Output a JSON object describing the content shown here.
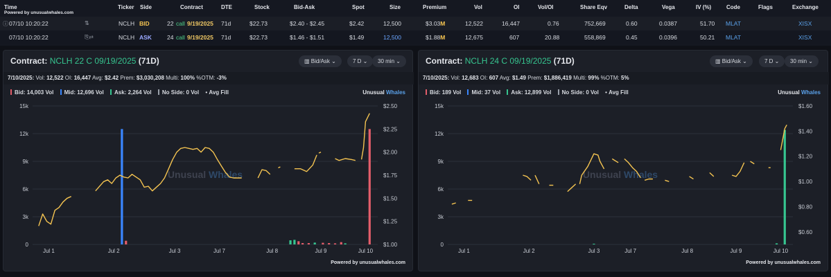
{
  "table": {
    "powered_by": "Powered by unusualwhales.com",
    "headers": [
      "Time",
      "Ticker",
      "Side",
      "Contract",
      "DTE",
      "Stock",
      "Bid-Ask",
      "Spot",
      "Size",
      "Premium",
      "Vol",
      "OI",
      "Vol/OI",
      "Share Eqv",
      "Delta",
      "Vega",
      "IV (%)",
      "Code",
      "Flags",
      "Exchange"
    ],
    "rows": [
      {
        "time": "07/10 10:20:22",
        "ticker": "NCLH",
        "side": "BID",
        "strike": "22",
        "type": "call",
        "expiry": "9/19/2025",
        "dte": "71d",
        "stock": "$22.73",
        "bid_ask": "$2.40 - $2.45",
        "spot": "$2.42",
        "size": "12,500",
        "premium": "$3.03",
        "premium_unit": "M",
        "vol": "12,522",
        "oi": "16,447",
        "vol_oi": "0.76",
        "share_eqv": "752,669",
        "delta": "0.60",
        "vega": "0.0387",
        "iv": "51.70",
        "code": "MLAT",
        "flags": "",
        "exchange": "XISX"
      },
      {
        "time": "07/10 10:20:22",
        "ticker": "NCLH",
        "side": "ASK",
        "strike": "24",
        "type": "call",
        "expiry": "9/19/2025",
        "dte": "71d",
        "stock": "$22.73",
        "bid_ask": "$1.46 - $1.51",
        "spot": "$1.49",
        "size": "12,500",
        "premium": "$1.88",
        "premium_unit": "M",
        "vol": "12,675",
        "oi": "607",
        "vol_oi": "20.88",
        "share_eqv": "558,869",
        "delta": "0.45",
        "vega": "0.0396",
        "iv": "50.21",
        "code": "MLAT",
        "flags": "",
        "exchange": "XISX"
      }
    ],
    "colors": {
      "bid": "#f5c451",
      "ask": "#9aa8ff",
      "call": "#4fd18b",
      "code": "#5aa0e8"
    }
  },
  "panels": [
    {
      "title_prefix": "Contract:",
      "contract": "NCLH 22 C 09/19/2025",
      "dte": "(71D)",
      "controls": {
        "mode": "Bid/Ask",
        "range": "7 D",
        "interval": "30 min"
      },
      "stats": {
        "date": "7/10/2025:",
        "vol_label": "Vol:",
        "vol": "12,522",
        "oi_label": "OI:",
        "oi": "16,447",
        "avg_label": "Avg:",
        "avg": "$2.42",
        "prem_label": "Prem:",
        "prem": "$3,030,208",
        "multi_label": "Multi:",
        "multi": "100%",
        "otm_label": "%OTM:",
        "otm": "-3%"
      },
      "legend": {
        "bid": "Bid: 14,003 Vol",
        "mid": "Mid: 12,696 Vol",
        "ask": "Ask: 2,264 Vol",
        "noside": "No Side: 0 Vol",
        "avgfill": "Avg Fill"
      },
      "brand": {
        "a": "Unusual",
        "b": "Whales"
      },
      "powered": "Powered by unusualwhales.com"
    },
    {
      "title_prefix": "Contract:",
      "contract": "NCLH 24 C 09/19/2025",
      "dte": "(71D)",
      "controls": {
        "mode": "Bid/Ask",
        "range": "7 D",
        "interval": "30 min"
      },
      "stats": {
        "date": "7/10/2025:",
        "vol_label": "Vol:",
        "vol": "12,683",
        "oi_label": "OI:",
        "oi": "607",
        "avg_label": "Avg:",
        "avg": "$1.49",
        "prem_label": "Prem:",
        "prem": "$1,886,419",
        "multi_label": "Multi:",
        "multi": "99%",
        "otm_label": "%OTM:",
        "otm": "5%"
      },
      "legend": {
        "bid": "Bid: 189 Vol",
        "mid": "Mid: 37 Vol",
        "ask": "Ask: 12,899 Vol",
        "noside": "No Side: 0 Vol",
        "avgfill": "Avg Fill"
      },
      "brand": {
        "a": "Unusual",
        "b": "Whales"
      },
      "powered": "Powered by unusualwhales.com"
    }
  ],
  "chart_data": [
    {
      "type": "bar",
      "xlabel": "",
      "ylabel": "",
      "x_range": [
        0,
        8.5
      ],
      "x_ticks": [
        {
          "x": 0.4,
          "label": "Jul 1"
        },
        {
          "x": 2.0,
          "label": "Jul 2"
        },
        {
          "x": 3.5,
          "label": "Jul 3"
        },
        {
          "x": 4.6,
          "label": "Jul 7"
        },
        {
          "x": 5.9,
          "label": "Jul 8"
        },
        {
          "x": 7.1,
          "label": "Jul 9"
        },
        {
          "x": 8.2,
          "label": "Jul 10"
        }
      ],
      "y_left": {
        "min": 0,
        "max": 15000,
        "ticks": [
          0,
          3000,
          6000,
          9000,
          12000,
          15000
        ],
        "labels": [
          "0",
          "3k",
          "6k",
          "9k",
          "12k",
          "15k"
        ]
      },
      "y_right": {
        "min": 1.0,
        "max": 2.5,
        "ticks": [
          1.0,
          1.25,
          1.5,
          1.75,
          2.0,
          2.25,
          2.5
        ],
        "labels": [
          "$1.00",
          "$1.25",
          "$1.50",
          "$1.75",
          "$2.00",
          "$2.25",
          "$2.50"
        ]
      },
      "grid": true,
      "volume_bars": [
        {
          "x": 2.2,
          "v": 12500,
          "side": "mid"
        },
        {
          "x": 2.3,
          "v": 400,
          "side": "bid"
        },
        {
          "x": 6.35,
          "v": 450,
          "side": "ask"
        },
        {
          "x": 6.45,
          "v": 500,
          "side": "ask"
        },
        {
          "x": 6.55,
          "v": 350,
          "side": "bid"
        },
        {
          "x": 6.65,
          "v": 150,
          "side": "bid"
        },
        {
          "x": 6.8,
          "v": 150,
          "side": "bid"
        },
        {
          "x": 6.95,
          "v": 200,
          "side": "ask"
        },
        {
          "x": 7.15,
          "v": 180,
          "side": "bid"
        },
        {
          "x": 7.3,
          "v": 150,
          "side": "bid"
        },
        {
          "x": 7.45,
          "v": 120,
          "side": "bid"
        },
        {
          "x": 7.6,
          "v": 250,
          "side": "bid"
        },
        {
          "x": 7.7,
          "v": 120,
          "side": "ask"
        },
        {
          "x": 8.3,
          "v": 12500,
          "side": "bid"
        }
      ],
      "avg_fill_segments": [
        [
          [
            0.15,
            1.2
          ],
          [
            0.25,
            1.33
          ],
          [
            0.35,
            1.25
          ],
          [
            0.45,
            1.22
          ],
          [
            0.55,
            1.37
          ],
          [
            0.65,
            1.4
          ],
          [
            0.75,
            1.46
          ],
          [
            0.85,
            1.5
          ],
          [
            0.95,
            1.52
          ]
        ],
        [
          [
            1.55,
            1.58
          ],
          [
            1.75,
            1.68
          ],
          [
            1.85,
            1.7
          ],
          [
            1.95,
            1.66
          ],
          [
            2.05,
            1.72
          ],
          [
            2.15,
            1.75
          ],
          [
            2.25,
            1.73
          ],
          [
            2.35,
            1.72
          ],
          [
            2.45,
            1.76
          ],
          [
            2.55,
            1.73
          ],
          [
            2.65,
            1.7
          ],
          [
            2.75,
            1.62
          ],
          [
            2.85,
            1.63
          ],
          [
            2.95,
            1.58
          ],
          [
            3.05,
            1.62
          ],
          [
            3.15,
            1.66
          ],
          [
            3.25,
            1.72
          ],
          [
            3.35,
            1.82
          ],
          [
            3.45,
            1.92
          ],
          [
            3.55,
            2.0
          ],
          [
            3.65,
            2.04
          ],
          [
            3.75,
            2.05
          ],
          [
            3.85,
            2.04
          ],
          [
            3.95,
            2.03
          ],
          [
            4.05,
            2.04
          ],
          [
            4.15,
            2.0
          ],
          [
            4.25,
            2.05
          ],
          [
            4.35,
            2.04
          ],
          [
            4.45,
            2.0
          ],
          [
            4.55,
            1.92
          ],
          [
            4.65,
            1.85
          ],
          [
            4.75,
            1.78
          ],
          [
            4.85,
            1.73
          ],
          [
            4.95,
            1.72
          ],
          [
            5.05,
            1.72
          ],
          [
            5.15,
            1.72
          ]
        ],
        [
          [
            5.55,
            1.72
          ],
          [
            5.65,
            1.81
          ],
          [
            5.75,
            1.8
          ],
          [
            5.85,
            1.76
          ]
        ],
        [
          [
            6.05,
            1.83
          ],
          [
            6.1,
            1.84
          ]
        ],
        [
          [
            6.45,
            1.82
          ],
          [
            6.6,
            1.82
          ],
          [
            6.75,
            1.79
          ],
          [
            6.9,
            1.86
          ],
          [
            7.0,
            1.97
          ]
        ],
        [
          [
            7.05,
            1.99
          ],
          [
            7.1,
            2.0
          ]
        ],
        [
          [
            7.45,
            1.93
          ],
          [
            7.55,
            1.91
          ],
          [
            7.7,
            1.93
          ],
          [
            7.85,
            1.92
          ],
          [
            7.95,
            1.91
          ]
        ],
        [
          [
            8.1,
            1.92
          ],
          [
            8.15,
            2.05
          ],
          [
            8.2,
            2.33
          ],
          [
            8.3,
            2.42
          ]
        ]
      ]
    },
    {
      "type": "bar",
      "xlabel": "",
      "ylabel": "",
      "x_range": [
        0,
        8.5
      ],
      "x_ticks": [
        {
          "x": 0.4,
          "label": "Jul 1"
        },
        {
          "x": 2.0,
          "label": "Jul 2"
        },
        {
          "x": 3.6,
          "label": "Jul 3"
        },
        {
          "x": 4.5,
          "label": "Jul 7"
        },
        {
          "x": 5.9,
          "label": "Jul 8"
        },
        {
          "x": 7.1,
          "label": "Jul 9"
        },
        {
          "x": 8.2,
          "label": "Jul 10"
        }
      ],
      "y_left": {
        "min": 0,
        "max": 15000,
        "ticks": [
          0,
          3000,
          6000,
          9000,
          12000,
          15000
        ],
        "labels": [
          "0",
          "3k",
          "6k",
          "9k",
          "12k",
          "15k"
        ]
      },
      "y_right": {
        "min": 0.5,
        "max": 1.6,
        "ticks": [
          0.6,
          0.8,
          1.0,
          1.2,
          1.4,
          1.6
        ],
        "labels": [
          "$0.60",
          "$0.80",
          "$1.00",
          "$1.20",
          "$1.40",
          "$1.60"
        ]
      },
      "grid": true,
      "volume_bars": [
        {
          "x": 3.6,
          "v": 80,
          "side": "ask"
        },
        {
          "x": 8.1,
          "v": 120,
          "side": "ask"
        },
        {
          "x": 8.3,
          "v": 12400,
          "side": "ask"
        }
      ],
      "avg_fill_segments": [
        [
          [
            0.1,
            0.82
          ],
          [
            0.2,
            0.83
          ]
        ],
        [
          [
            0.5,
            0.85
          ],
          [
            0.6,
            0.85
          ]
        ],
        [
          [
            1.85,
            1.05
          ],
          [
            1.95,
            1.04
          ],
          [
            2.05,
            1.01
          ]
        ],
        [
          [
            2.15,
            1.05
          ],
          [
            2.25,
            0.98
          ]
        ],
        [
          [
            2.5,
            0.97
          ],
          [
            2.6,
            0.97
          ]
        ],
        [
          [
            2.95,
            0.92
          ],
          [
            3.05,
            0.95
          ],
          [
            3.15,
            0.98
          ]
        ],
        [
          [
            3.25,
            0.98
          ],
          [
            3.3,
            1.05
          ],
          [
            3.45,
            1.12
          ],
          [
            3.6,
            1.22
          ],
          [
            3.7,
            1.21
          ],
          [
            3.75,
            1.16
          ],
          [
            3.85,
            1.1
          ]
        ],
        [
          [
            4.05,
            1.18
          ],
          [
            4.2,
            1.15
          ]
        ],
        [
          [
            4.35,
            1.18
          ],
          [
            4.45,
            1.15
          ],
          [
            4.55,
            1.11
          ],
          [
            4.65,
            1.08
          ],
          [
            4.75,
            1.03
          ]
        ],
        [
          [
            4.85,
            1.01
          ],
          [
            4.95,
            1.02
          ],
          [
            5.05,
            1.02
          ]
        ],
        [
          [
            5.35,
            1.01
          ],
          [
            5.45,
            1.0
          ]
        ],
        [
          [
            5.95,
            1.04
          ],
          [
            6.05,
            1.02
          ]
        ],
        [
          [
            6.45,
            1.07
          ],
          [
            6.55,
            1.04
          ]
        ],
        [
          [
            7.0,
            1.05
          ],
          [
            7.1,
            1.04
          ],
          [
            7.2,
            1.08
          ],
          [
            7.3,
            1.15
          ]
        ],
        [
          [
            7.45,
            1.16
          ],
          [
            7.55,
            1.14
          ]
        ],
        [
          [
            7.9,
            1.11
          ],
          [
            7.95,
            1.11
          ]
        ],
        [
          [
            8.2,
            1.25
          ],
          [
            8.3,
            1.42
          ],
          [
            8.35,
            1.45
          ]
        ]
      ]
    }
  ],
  "colors": {
    "bid": "#e35d6a",
    "mid": "#3a86ff",
    "ask": "#36c48f",
    "avg_fill": "#f5c451",
    "grid": "#2c313b"
  }
}
